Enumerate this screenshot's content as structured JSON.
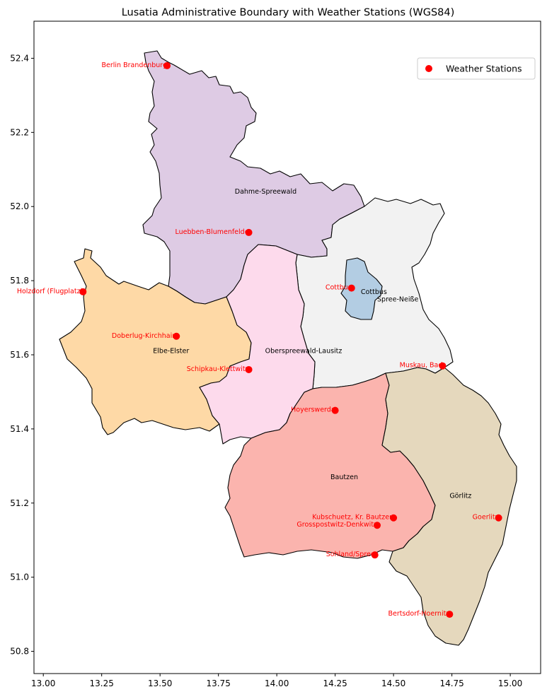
{
  "title": "Lusatia Administrative Boundary with Weather Stations (WGS84)",
  "axes": {
    "x_range": [
      12.96,
      15.13
    ],
    "y_range": [
      50.74,
      52.5
    ],
    "x_ticks": [
      "13.00",
      "13.25",
      "13.50",
      "13.75",
      "14.00",
      "14.25",
      "14.50",
      "14.75",
      "15.00"
    ],
    "y_ticks": [
      "50.8",
      "51.0",
      "51.2",
      "51.4",
      "51.6",
      "51.8",
      "52.0",
      "52.2",
      "52.4"
    ]
  },
  "legend": {
    "label": "Weather Stations",
    "placement": "top-right"
  },
  "colors": {
    "station": "#ff0000",
    "outline": "#000000",
    "dahme": "#decbe4",
    "spree_neisse": "#f2f2f2",
    "cottbus": "#b3cde3",
    "elbe_elster": "#fed9a6",
    "oberspreewald": "#fddaec",
    "bautzen": "#fbb4ae",
    "goerlitz": "#e5d8bd"
  },
  "regions": [
    {
      "id": "dahme",
      "name": "Dahme-Spreewald",
      "label_at": [
        13.82,
        52.04
      ],
      "color_key": "dahme"
    },
    {
      "id": "spree_neisse",
      "name": "Spree-Neiße",
      "label_at": [
        14.43,
        51.75
      ],
      "color_key": "spree_neisse"
    },
    {
      "id": "cottbus",
      "name": "Cottbus",
      "label_at": [
        14.36,
        51.77
      ],
      "color_key": "cottbus"
    },
    {
      "id": "elbe_elster",
      "name": "Elbe-Elster",
      "label_at": [
        13.47,
        51.61
      ],
      "color_key": "elbe_elster"
    },
    {
      "id": "oberspreewald",
      "name": "Oberspreewald-Lausitz",
      "label_at": [
        13.95,
        51.61
      ],
      "color_key": "oberspreewald"
    },
    {
      "id": "bautzen",
      "name": "Bautzen",
      "label_at": [
        14.23,
        51.27
      ],
      "color_key": "bautzen"
    },
    {
      "id": "goerlitz",
      "name": "Görlitz",
      "label_at": [
        14.74,
        51.22
      ],
      "color_key": "goerlitz"
    }
  ],
  "stations": [
    {
      "name": "Berlin Brandenburg",
      "lon": 13.53,
      "lat": 52.38
    },
    {
      "name": "Luebben-Blumenfelde",
      "lon": 13.88,
      "lat": 51.93
    },
    {
      "name": "Holzdorf (Flugplatz)",
      "lon": 13.17,
      "lat": 51.77
    },
    {
      "name": "Cottbus",
      "lon": 14.32,
      "lat": 51.78
    },
    {
      "name": "Doberlug-Kirchhain",
      "lon": 13.57,
      "lat": 51.65
    },
    {
      "name": "Schipkau-Klettwitz",
      "lon": 13.88,
      "lat": 51.56
    },
    {
      "name": "Muskau, Bad",
      "lon": 14.71,
      "lat": 51.57
    },
    {
      "name": "Hoyerswerda",
      "lon": 14.25,
      "lat": 51.45
    },
    {
      "name": "Kubschuetz, Kr. Bautzen",
      "lon": 14.5,
      "lat": 51.16
    },
    {
      "name": "Grosspostwitz-Denkwitz",
      "lon": 14.43,
      "lat": 51.14
    },
    {
      "name": "Goerlitz",
      "lon": 14.95,
      "lat": 51.16
    },
    {
      "name": "Sohland/Spree",
      "lon": 14.42,
      "lat": 51.06
    },
    {
      "name": "Bertsdorf-Hoernitz",
      "lon": 14.74,
      "lat": 50.9
    }
  ]
}
